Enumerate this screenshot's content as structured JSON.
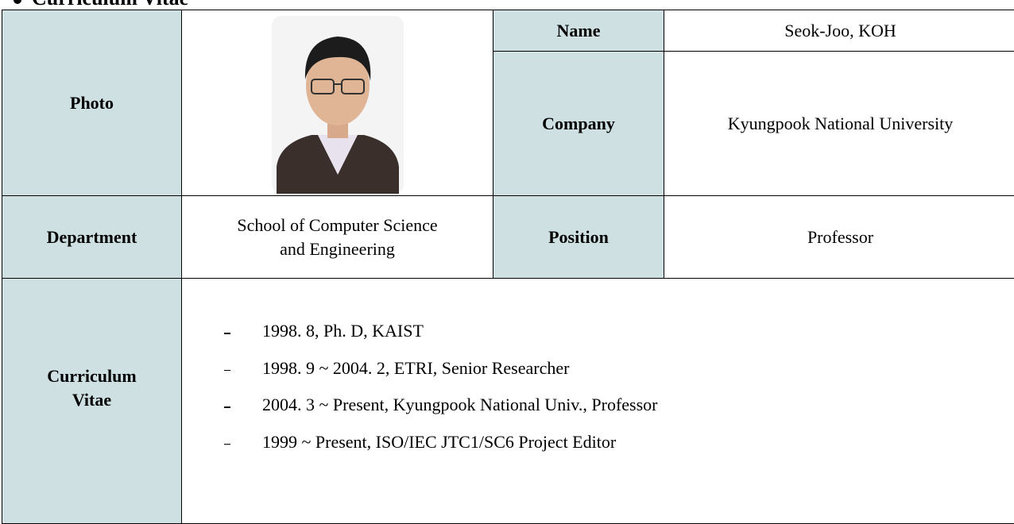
{
  "header": {
    "title": "Curriculum Vitae"
  },
  "table": {
    "photo_label": "Photo",
    "name_label": "Name",
    "name": "Seok-Joo, KOH",
    "company_label": "Company",
    "company": "Kyungpook National University",
    "department_label": "Department",
    "department": [
      "School of Computer Science",
      "and Engineering"
    ],
    "position_label": "Position",
    "position": "Professor",
    "cv_label": [
      "Curriculum",
      "Vitae"
    ],
    "cv_items": [
      "1998. 8, Ph. D, KAIST",
      "1998. 9 ~ 2004. 2, ETRI, Senior Researcher",
      "2004. 3 ~ Present, Kyungpook National Univ., Professor",
      "1999 ~ Present, ISO/IEC JTC1/SC6 Project Editor"
    ]
  }
}
